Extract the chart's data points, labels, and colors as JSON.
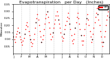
{
  "title": "Evapotranspiration   per Day   (Inches)",
  "ylabel_left": "Milwaukee",
  "background_color": "#ffffff",
  "plot_background": "#ffffff",
  "grid_color": "#cccccc",
  "dot_color": "#ff0000",
  "dot_color2": "#000000",
  "ylim": [
    0.0,
    0.35
  ],
  "yticks": [
    0.05,
    0.1,
    0.15,
    0.2,
    0.25,
    0.3,
    0.35
  ],
  "legend_line_color": "#ff0000",
  "x_values": [
    1,
    2,
    3,
    4,
    5,
    6,
    7,
    8,
    9,
    10,
    11,
    12,
    13,
    14,
    15,
    16,
    17,
    18,
    19,
    20,
    21,
    22,
    23,
    24,
    25,
    26,
    27,
    28,
    29,
    30,
    31,
    32,
    33,
    34,
    35,
    36,
    37,
    38,
    39,
    40,
    41,
    42,
    43,
    44,
    45,
    46,
    47,
    48,
    49,
    50,
    51,
    52,
    53,
    54,
    55,
    56,
    57,
    58,
    59,
    60,
    61,
    62,
    63,
    64,
    65,
    66,
    67,
    68,
    69,
    70,
    71,
    72,
    73,
    74,
    75,
    76,
    77,
    78,
    79,
    80,
    81,
    82,
    83,
    84,
    85,
    86,
    87,
    88,
    89,
    90,
    91,
    92,
    93,
    94,
    95,
    96,
    97,
    98,
    99,
    100,
    101,
    102,
    103,
    104,
    105,
    106,
    107,
    108,
    109,
    110,
    111,
    112,
    113,
    114,
    115,
    116,
    117,
    118,
    119,
    120
  ],
  "y_values": [
    0.12,
    0.1,
    0.08,
    0.12,
    0.14,
    0.16,
    0.18,
    0.15,
    0.12,
    0.1,
    0.08,
    0.06,
    0.09,
    0.11,
    0.14,
    0.17,
    0.2,
    0.22,
    0.19,
    0.16,
    0.13,
    0.1,
    0.08,
    0.05,
    0.07,
    0.1,
    0.14,
    0.18,
    0.22,
    0.25,
    0.28,
    0.24,
    0.2,
    0.16,
    0.12,
    0.08,
    0.1,
    0.13,
    0.17,
    0.21,
    0.25,
    0.28,
    0.3,
    0.26,
    0.22,
    0.18,
    0.14,
    0.1,
    0.12,
    0.15,
    0.18,
    0.21,
    0.24,
    0.27,
    0.3,
    0.27,
    0.24,
    0.21,
    0.18,
    0.15,
    0.12,
    0.09,
    0.11,
    0.14,
    0.17,
    0.2,
    0.23,
    0.26,
    0.29,
    0.25,
    0.21,
    0.17,
    0.13,
    0.09,
    0.07,
    0.1,
    0.14,
    0.18,
    0.22,
    0.26,
    0.29,
    0.25,
    0.21,
    0.17,
    0.13,
    0.09,
    0.06,
    0.09,
    0.13,
    0.17,
    0.21,
    0.25,
    0.28,
    0.24,
    0.2,
    0.16,
    0.12,
    0.08,
    0.1,
    0.14,
    0.18,
    0.22,
    0.26,
    0.29,
    0.32,
    0.28,
    0.24,
    0.2,
    0.16,
    0.12,
    0.08,
    0.05,
    0.08,
    0.12,
    0.16,
    0.2,
    0.24,
    0.27,
    0.3,
    0.26
  ],
  "vline_positions": [
    11,
    21,
    31,
    41,
    51,
    61,
    71,
    81,
    91,
    101,
    111
  ],
  "month_tick_positions": [
    1,
    11,
    21,
    31,
    41,
    51,
    61,
    71,
    81,
    91,
    101,
    111
  ],
  "month_tick_labels": [
    "J",
    "F",
    "M",
    "A",
    "M",
    "J",
    "J",
    "A",
    "S",
    "O",
    "N",
    "D"
  ],
  "title_fontsize": 4.5,
  "tick_fontsize": 3.0,
  "figsize": [
    1.6,
    0.87
  ],
  "dpi": 100
}
